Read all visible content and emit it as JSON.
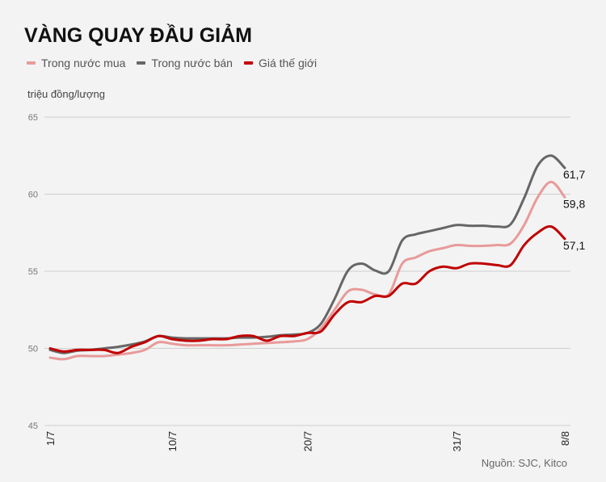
{
  "title": "VÀNG QUAY ĐẦU GIẢM",
  "unit": "triệu đồng/lượng",
  "source": "Nguồn: SJC, Kitco",
  "chart_data": {
    "type": "line",
    "title": "VÀNG QUAY ĐẦU GIẢM",
    "ylabel": "triệu đồng/lượng",
    "ylim": [
      45,
      65
    ],
    "yticks": [
      "45",
      "50",
      "55",
      "60",
      "65"
    ],
    "grid": true,
    "legend_position": "top-left",
    "x": [
      "1/7",
      "2/7",
      "3/7",
      "4/7",
      "5/7",
      "6/7",
      "7/7",
      "8/7",
      "9/7",
      "10/7",
      "11/7",
      "12/7",
      "13/7",
      "14/7",
      "15/7",
      "16/7",
      "17/7",
      "18/7",
      "19/7",
      "20/7",
      "21/7",
      "22/7",
      "23/7",
      "24/7",
      "25/7",
      "26/7",
      "27/7",
      "28/7",
      "29/7",
      "30/7",
      "31/7",
      "1/8",
      "2/8",
      "3/8",
      "4/8",
      "5/8",
      "6/8",
      "7/8",
      "8/8"
    ],
    "xtick_labels": [
      "1/7",
      "10/7",
      "20/7",
      "31/7",
      "8/8"
    ],
    "series": [
      {
        "name": "Trong nước mua",
        "color": "#e89a9a",
        "end_label": "59,8",
        "values": [
          49.4,
          49.3,
          49.5,
          49.5,
          49.5,
          49.6,
          49.7,
          49.9,
          50.4,
          50.3,
          50.2,
          50.2,
          50.2,
          50.2,
          50.25,
          50.3,
          50.35,
          50.4,
          50.45,
          50.6,
          51.3,
          52.5,
          53.7,
          53.8,
          53.5,
          53.5,
          55.5,
          55.9,
          56.3,
          56.5,
          56.7,
          56.65,
          56.65,
          56.7,
          56.8,
          58.0,
          59.8,
          60.8,
          59.8
        ]
      },
      {
        "name": "Trong nước bán",
        "color": "#666666",
        "end_label": "61,7",
        "values": [
          49.9,
          49.7,
          49.85,
          49.9,
          50.0,
          50.1,
          50.25,
          50.45,
          50.8,
          50.7,
          50.65,
          50.65,
          50.65,
          50.65,
          50.7,
          50.7,
          50.75,
          50.85,
          50.9,
          51.0,
          51.6,
          53.2,
          55.05,
          55.5,
          55.05,
          55.0,
          57.0,
          57.4,
          57.6,
          57.8,
          58.0,
          57.95,
          57.95,
          57.9,
          58.05,
          59.75,
          61.85,
          62.5,
          61.7
        ]
      },
      {
        "name": "Giá thế giới",
        "color": "#c00000",
        "end_label": "57,1",
        "values": [
          50.0,
          49.8,
          49.9,
          49.9,
          49.9,
          49.7,
          50.1,
          50.4,
          50.8,
          50.6,
          50.5,
          50.5,
          50.6,
          50.6,
          50.8,
          50.8,
          50.5,
          50.8,
          50.8,
          51.0,
          51.1,
          52.2,
          53.0,
          53.0,
          53.4,
          53.4,
          54.2,
          54.2,
          55.0,
          55.3,
          55.2,
          55.5,
          55.5,
          55.4,
          55.4,
          56.7,
          57.5,
          57.9,
          57.1
        ]
      }
    ]
  }
}
